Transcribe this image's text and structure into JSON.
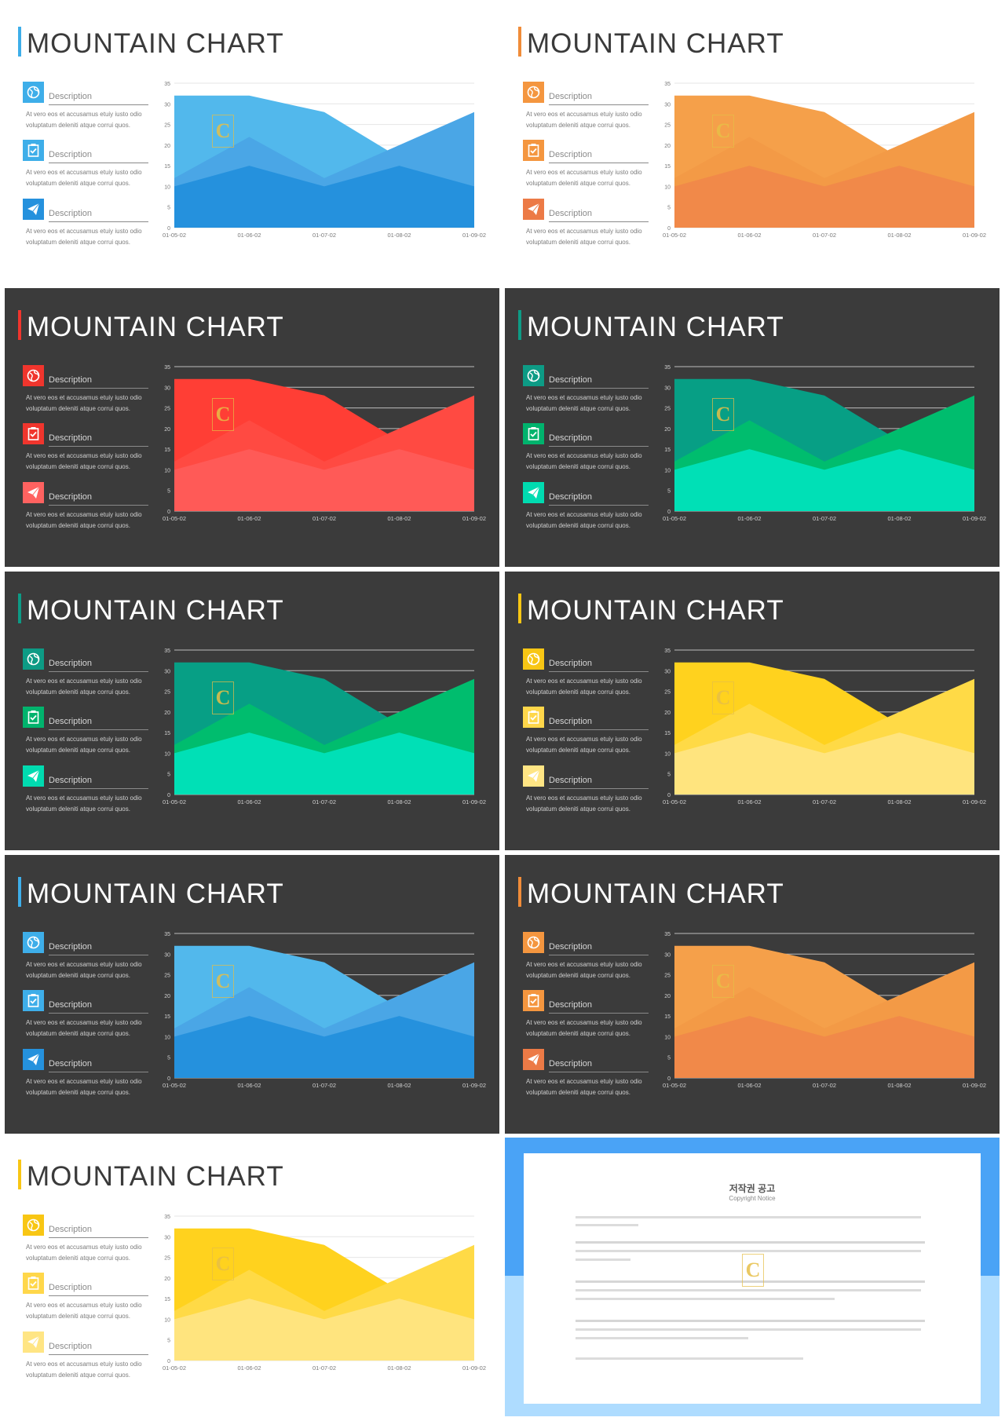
{
  "slides": [
    {
      "id": "s1",
      "theme": "light",
      "accent": "#3eaee9",
      "colors": [
        "#2591dd",
        "#52b8ec",
        "#4aa6e6"
      ],
      "icon_colors": [
        "#3eaee9",
        "#3eaee9",
        "#2591dd"
      ],
      "title": "MOUNTAIN CHART"
    },
    {
      "id": "s2",
      "theme": "light",
      "accent": "#f08c39",
      "colors": [
        "#f18949",
        "#f5a04a",
        "#f39a46"
      ],
      "icon_colors": [
        "#f4963f",
        "#f4963f",
        "#ec7a46"
      ],
      "title": "MOUNTAIN CHART"
    },
    {
      "id": "s3",
      "theme": "dark",
      "accent": "#f0352d",
      "colors": [
        "#ff5a57",
        "#ff3e35",
        "#ff4a42"
      ],
      "icon_colors": [
        "#f0352d",
        "#f0352d",
        "#ff6260"
      ],
      "title": "MOUNTAIN CHART"
    },
    {
      "id": "s4",
      "theme": "dark",
      "accent": "#0d9b85",
      "colors": [
        "#00e0b6",
        "#079f85",
        "#00bd6e"
      ],
      "icon_colors": [
        "#0d9b85",
        "#00b36d",
        "#00dbb0"
      ],
      "title": "MOUNTAIN CHART"
    },
    {
      "id": "s5",
      "theme": "dark",
      "accent": "#0d9b85",
      "colors": [
        "#00e0b6",
        "#079f85",
        "#00bd6e"
      ],
      "icon_colors": [
        "#0d9b85",
        "#00b36d",
        "#00dbb0"
      ],
      "title": "MOUNTAIN CHART"
    },
    {
      "id": "s6",
      "theme": "dark",
      "accent": "#f8c614",
      "colors": [
        "#ffe47e",
        "#ffd21e",
        "#ffda46"
      ],
      "icon_colors": [
        "#f8c614",
        "#ffd74a",
        "#ffe584"
      ],
      "title": "MOUNTAIN CHART"
    },
    {
      "id": "s7",
      "theme": "dark",
      "accent": "#3eaee9",
      "colors": [
        "#2591dd",
        "#52b8ec",
        "#4aa6e6"
      ],
      "icon_colors": [
        "#3eaee9",
        "#3eaee9",
        "#2591dd"
      ],
      "title": "MOUNTAIN CHART"
    },
    {
      "id": "s8",
      "theme": "dark",
      "accent": "#f08c39",
      "colors": [
        "#f18949",
        "#f5a04a",
        "#f39a46"
      ],
      "icon_colors": [
        "#f4963f",
        "#f4963f",
        "#ec7a46"
      ],
      "title": "MOUNTAIN CHART"
    },
    {
      "id": "s9",
      "theme": "light",
      "accent": "#f8c614",
      "colors": [
        "#ffe47e",
        "#ffd21e",
        "#ffda46"
      ],
      "icon_colors": [
        "#f8c614",
        "#ffd74a",
        "#ffe584"
      ],
      "title": "MOUNTAIN CHART"
    }
  ],
  "items": [
    {
      "icon": "globe-icon",
      "heading": "Description",
      "body": "At vero eos et accusamus etuiy iusto odio voluptatum deleniti atque corrui quos."
    },
    {
      "icon": "clipboard-check-icon",
      "heading": "Description",
      "body": "At vero eos et accusamus etuiy iusto odio voluptatum deleniti atque corrui quos."
    },
    {
      "icon": "paper-plane-icon",
      "heading": "Description",
      "body": "At vero eos et accusamus etuiy iusto odio voluptatum deleniti atque corrui quos."
    }
  ],
  "chart_data": {
    "type": "area",
    "categories": [
      "01-05-02",
      "01-06-02",
      "01-07-02",
      "01-08-02",
      "01-09-02"
    ],
    "series": [
      {
        "values": [
          32,
          32,
          28,
          17,
          28
        ]
      },
      {
        "values": [
          12,
          22,
          12,
          20,
          28
        ]
      },
      {
        "values": [
          10,
          15,
          10,
          15,
          10
        ]
      }
    ],
    "ylim": [
      0,
      35
    ],
    "yticks": [
      0,
      5,
      10,
      15,
      20,
      25,
      30,
      35
    ],
    "grid": true
  },
  "notice": {
    "title": "저작권 공고",
    "subtitle": "Copyright Notice",
    "watermark": "C"
  }
}
